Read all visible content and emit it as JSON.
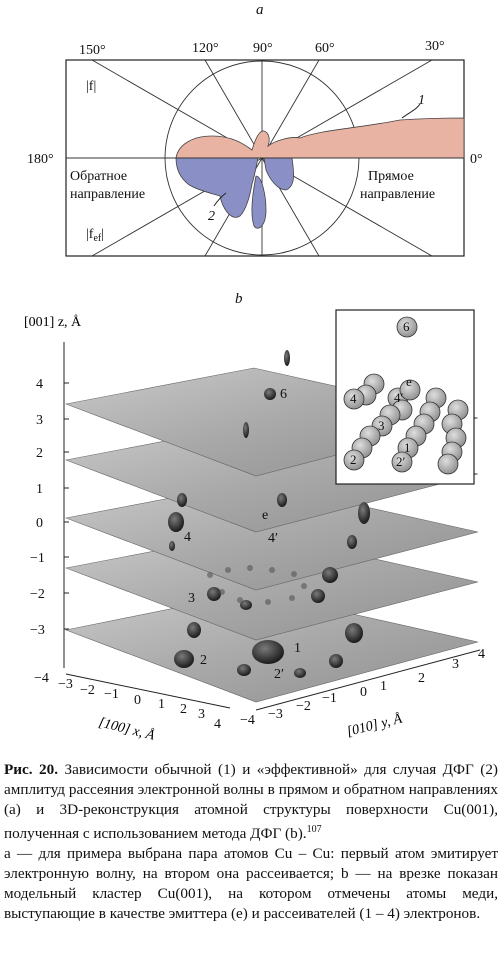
{
  "panel_a": {
    "label": "a",
    "angles": {
      "a150": "150°",
      "a120": "120°",
      "a90": "90°",
      "a60": "60°",
      "a30": "30°",
      "a180": "180°",
      "a0": "0°"
    },
    "f_label": "|f|",
    "fef_label_main": "|f",
    "fef_label_sub": "ef",
    "fef_label_end": "|",
    "backward_line1": "Обратное",
    "backward_line2": "направление",
    "forward_line1": "Прямое",
    "forward_line2": "направление",
    "curve1_label": "1",
    "curve2_label": "2",
    "curve1_color": "#e9b3a3",
    "curve2_color": "#8a8fc6"
  },
  "panel_b": {
    "label": "b",
    "z_axis_label": "[001] z, Å",
    "z_ticks": [
      "4",
      "3",
      "2",
      "1",
      "0",
      "−1",
      "−2",
      "−3"
    ],
    "x_axis_label": "[100] x, Å",
    "x_ticks": [
      "−4",
      "−3",
      "−2",
      "−1",
      "0",
      "1",
      "2",
      "3",
      "4"
    ],
    "y_axis_label": "[010] y, Å",
    "y_ticks": [
      "−4",
      "−3",
      "−2",
      "−1",
      "0",
      "1",
      "2",
      "3",
      "4"
    ],
    "plane_labels": {
      "p6": "6",
      "pe": "e",
      "p4": "4",
      "p4p": "4′",
      "p3": "3",
      "p1": "1",
      "p2": "2",
      "p2p": "2′"
    },
    "inset_labels": {
      "i6": "6",
      "i4": "4",
      "i4p": "4′",
      "ie": "e",
      "i3": "3",
      "i1": "1",
      "i2": "2",
      "i2p": "2′"
    }
  },
  "caption": {
    "head": "Рис. 20.",
    "body": " Зависимости обычной (1) и «эффективной» для случая ДФГ (2) амплитуд рассеяния электронной волны в прямом и обратном направлениях (a) и 3D-реконструкция атомной структуры поверхности Cu(001), полученная с использованием метода ДФГ (b).",
    "ref": "107",
    "note": "a — для примера выбрана пара атомов Cu – Cu: первый атом эмитирует электронную волну, на втором она рассеивается; b — на врезке показан модельный кластер Cu(001), на котором отмечены атомы меди, выступающие в качестве эмиттера (e) и рассеивателей (1 – 4) электронов."
  }
}
